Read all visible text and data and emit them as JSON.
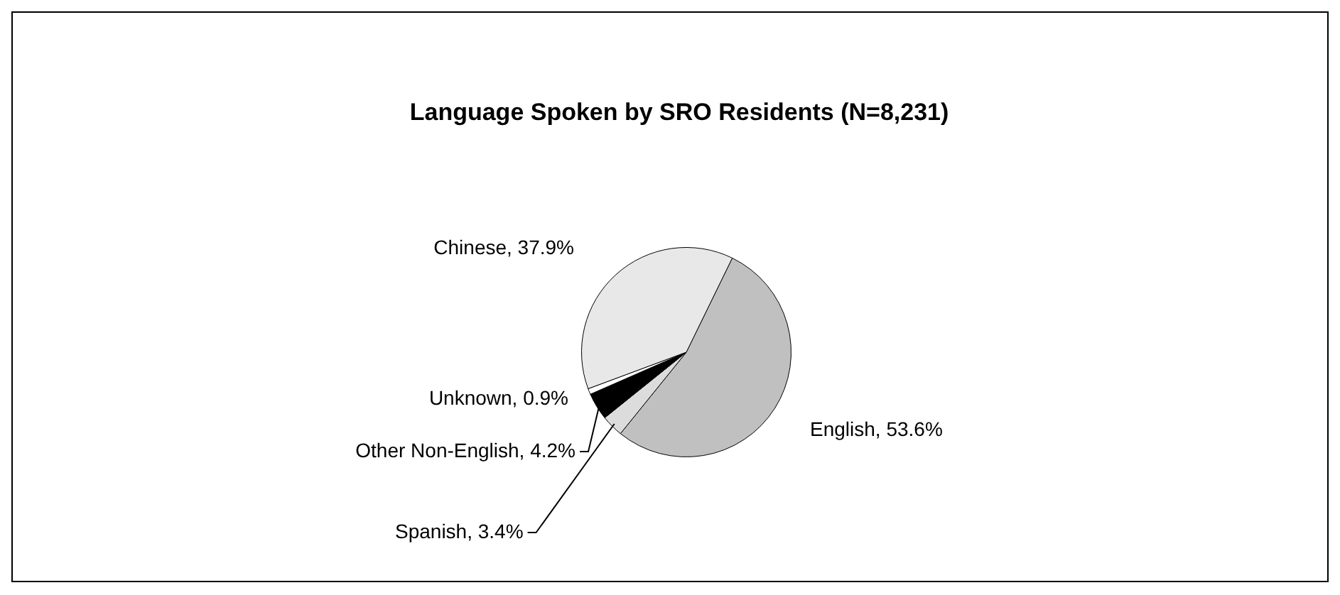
{
  "chart_data": {
    "type": "pie",
    "title": "Language Spoken by SRO Residents (N=8,231)",
    "categories": [
      "English",
      "Spanish",
      "Other Non-English",
      "Unknown",
      "Chinese"
    ],
    "values": [
      53.6,
      3.4,
      4.2,
      0.9,
      37.9
    ],
    "colors": [
      "#c0c0c0",
      "#dcdcdc",
      "#000000",
      "#ffffff",
      "#e8e8e8"
    ],
    "value_labels": [
      "53.6%",
      "3.4%",
      "4.2%",
      "0.9%",
      "37.9%"
    ],
    "legend": false
  }
}
